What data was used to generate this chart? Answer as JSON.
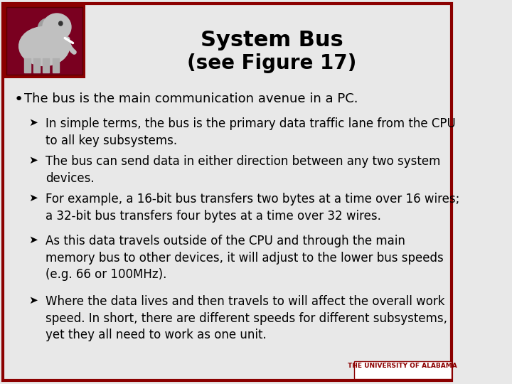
{
  "title_line1": "System Bus",
  "title_line2": "(see Figure 17)",
  "bullet_main": "The bus is the main communication avenue in a PC.",
  "sub_bullets": [
    "In simple terms, the bus is the primary data traffic lane from the CPU\nto all key subsystems.",
    "The bus can send data in either direction between any two system\ndevices.",
    "For example, a 16-bit bus transfers two bytes at a time over 16 wires;\na 32-bit bus transfers four bytes at a time over 32 wires.",
    "As this data travels outside of the CPU and through the main\nmemory bus to other devices, it will adjust to the lower bus speeds\n(e.g. 66 or 100MHz).",
    "Where the data lives and then travels to will affect the overall work\nspeed. In short, there are different speeds for different subsystems,\nyet they all need to work as one unit."
  ],
  "bg_color": "#e8e8e8",
  "border_color": "#8b0000",
  "title_color": "#000000",
  "text_color": "#000000",
  "footer_text": "THE UNIVERSITY OF ALABAMA",
  "footer_bg": "#8b0000",
  "footer_text_color": "#ffffff",
  "logo_bg": "#8b0000"
}
